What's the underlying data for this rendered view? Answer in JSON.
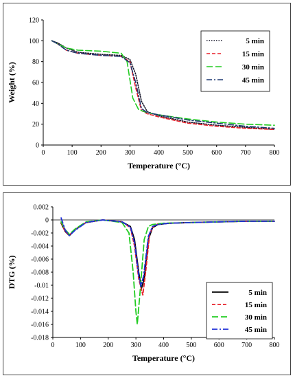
{
  "chart_data": [
    {
      "type": "line",
      "title": "",
      "xlabel": "Temperature (°C)",
      "ylabel": "Weight (%)",
      "xlim": [
        0,
        800
      ],
      "ylim": [
        0,
        120
      ],
      "xticks": [
        "0",
        "100",
        "200",
        "300",
        "400",
        "500",
        "600",
        "700",
        "800"
      ],
      "yticks": [
        "0",
        "20",
        "40",
        "60",
        "80",
        "100",
        "120"
      ],
      "grid": false,
      "legend_position": "top-right",
      "series": [
        {
          "name": "5 min",
          "color": "#1a1a2e",
          "dash": "dotted",
          "x": [
            30,
            50,
            80,
            120,
            200,
            270,
            300,
            320,
            340,
            360,
            400,
            500,
            600,
            700,
            800
          ],
          "y": [
            100,
            98,
            93,
            89,
            87,
            86,
            82,
            68,
            42,
            32,
            28,
            22,
            19,
            17,
            15
          ]
        },
        {
          "name": "15 min",
          "color": "#e8202a",
          "dash": "dashed",
          "x": [
            30,
            50,
            80,
            120,
            200,
            270,
            300,
            320,
            340,
            360,
            400,
            500,
            600,
            700,
            800
          ],
          "y": [
            100,
            97,
            91,
            88,
            86,
            85,
            80,
            55,
            33,
            30,
            27,
            21,
            18,
            16,
            15
          ]
        },
        {
          "name": "30 min",
          "color": "#22cc22",
          "dash": "longdash",
          "x": [
            30,
            50,
            80,
            120,
            200,
            270,
            290,
            310,
            330,
            360,
            400,
            500,
            600,
            700,
            800
          ],
          "y": [
            100,
            97,
            93,
            91,
            90,
            88,
            80,
            45,
            34,
            31,
            29,
            25,
            22,
            20,
            19
          ]
        },
        {
          "name": "45 min",
          "color": "#1f3a73",
          "dash": "dashdot",
          "x": [
            30,
            50,
            80,
            120,
            200,
            270,
            300,
            320,
            340,
            360,
            400,
            500,
            600,
            700,
            800
          ],
          "y": [
            100,
            97,
            91,
            88,
            86,
            85,
            79,
            60,
            35,
            31,
            29,
            24,
            21,
            18,
            16
          ]
        }
      ]
    },
    {
      "type": "line",
      "title": "",
      "xlabel": "Temperature (°C)",
      "ylabel": "DTG (%)",
      "xlim": [
        0,
        800
      ],
      "ylim": [
        -0.018,
        0.002
      ],
      "xticks": [
        "0",
        "100",
        "200",
        "300",
        "400",
        "500",
        "600",
        "700",
        "800"
      ],
      "yticks": [
        "0.002",
        "0",
        "-0.002",
        "-0.004",
        "-0.006",
        "-0.008",
        "-0.01",
        "-0.012",
        "-0.014",
        "-0.016",
        "-0.018"
      ],
      "grid": false,
      "legend_position": "bottom-right",
      "series": [
        {
          "name": "5 min",
          "color": "#000000",
          "dash": "solid",
          "x": [
            30,
            45,
            60,
            80,
            120,
            180,
            250,
            280,
            295,
            310,
            320,
            330,
            345,
            360,
            380,
            420,
            500,
            600,
            700,
            800
          ],
          "y": [
            -0.0005,
            -0.0018,
            -0.0024,
            -0.0015,
            -0.0004,
            0,
            -0.0003,
            -0.001,
            -0.003,
            -0.008,
            -0.0105,
            -0.009,
            -0.003,
            -0.0012,
            -0.0007,
            -0.0005,
            -0.0004,
            -0.0003,
            -0.0002,
            -0.0002
          ]
        },
        {
          "name": "15 min",
          "color": "#e8202a",
          "dash": "dashed",
          "x": [
            30,
            45,
            60,
            80,
            120,
            180,
            250,
            280,
            295,
            310,
            325,
            335,
            350,
            365,
            380,
            420,
            500,
            600,
            700,
            800
          ],
          "y": [
            -0.0004,
            -0.0018,
            -0.0023,
            -0.0015,
            -0.0004,
            0,
            -0.0003,
            -0.0012,
            -0.004,
            -0.009,
            -0.0115,
            -0.008,
            -0.002,
            -0.0009,
            -0.0006,
            -0.0005,
            -0.0004,
            -0.0003,
            -0.0002,
            -0.0002
          ]
        },
        {
          "name": "30 min",
          "color": "#22cc22",
          "dash": "longdash",
          "x": [
            30,
            45,
            60,
            80,
            120,
            180,
            250,
            275,
            290,
            300,
            305,
            315,
            330,
            345,
            360,
            400,
            500,
            600,
            700,
            800
          ],
          "y": [
            -0.0003,
            -0.0015,
            -0.0022,
            -0.0014,
            -0.0003,
            0,
            -0.0004,
            -0.002,
            -0.008,
            -0.014,
            -0.016,
            -0.011,
            -0.003,
            -0.001,
            -0.0007,
            -0.0005,
            -0.0004,
            -0.0003,
            -0.0002,
            -0.0002
          ]
        },
        {
          "name": "45 min",
          "color": "#1f2fd6",
          "dash": "dashdot",
          "x": [
            30,
            45,
            60,
            80,
            120,
            180,
            250,
            280,
            295,
            310,
            318,
            328,
            345,
            360,
            380,
            420,
            500,
            600,
            700,
            800
          ],
          "y": [
            0.0003,
            -0.0016,
            -0.0024,
            -0.0016,
            -0.0004,
            0,
            -0.0003,
            -0.0011,
            -0.0035,
            -0.0085,
            -0.0102,
            -0.0085,
            -0.0025,
            -0.001,
            -0.0007,
            -0.0005,
            -0.0004,
            -0.0003,
            -0.0002,
            -0.0002
          ]
        }
      ]
    }
  ]
}
